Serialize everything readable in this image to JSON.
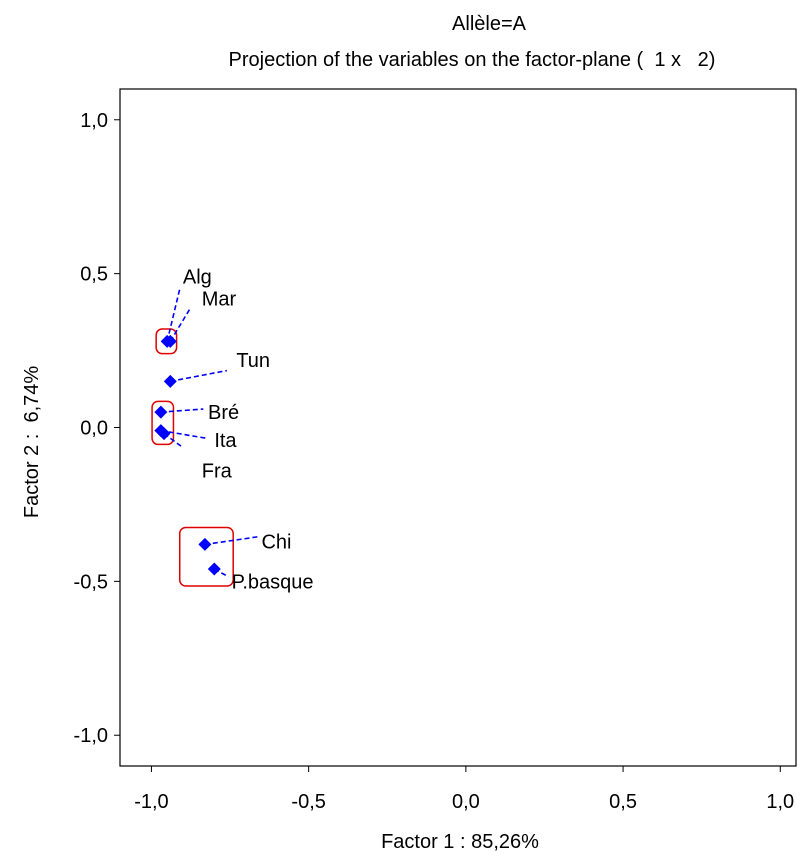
{
  "chart_data": {
    "type": "scatter",
    "title": "Allèle=A",
    "subtitle": "Projection of the variables on the factor-plane (  1 x   2)",
    "xlabel": "Factor 1 : 85,26%",
    "ylabel": "Factor 2 :  6,74%",
    "xlim": [
      -1.1,
      1.05
    ],
    "ylim": [
      -1.1,
      1.1
    ],
    "x_ticks": [
      {
        "value": -1.0,
        "label": "-1,0"
      },
      {
        "value": -0.5,
        "label": "-0,5"
      },
      {
        "value": 0.0,
        "label": "0,0"
      },
      {
        "value": 0.5,
        "label": "0,5"
      },
      {
        "value": 1.0,
        "label": "1,0"
      }
    ],
    "y_ticks": [
      {
        "value": 1.0,
        "label": "1,0"
      },
      {
        "value": 0.5,
        "label": "0,5"
      },
      {
        "value": 0.0,
        "label": "0,0"
      },
      {
        "value": -0.5,
        "label": "-0,5"
      },
      {
        "value": -1.0,
        "label": "-1,0"
      }
    ],
    "grid": false,
    "point_color": "#0000ff",
    "leader_color": "#0000ff",
    "group_box_color": "#e00000",
    "points": [
      {
        "label": "Alg",
        "x": -0.95,
        "y": 0.28,
        "label_x": -0.9,
        "label_y": 0.49,
        "anchor_x": -0.91,
        "anchor_y": 0.45
      },
      {
        "label": "Mar",
        "x": -0.94,
        "y": 0.28,
        "label_x": -0.84,
        "label_y": 0.42,
        "anchor_x": -0.875,
        "anchor_y": 0.39
      },
      {
        "label": "Tun",
        "x": -0.94,
        "y": 0.15,
        "label_x": -0.73,
        "label_y": 0.22,
        "anchor_x": -0.76,
        "anchor_y": 0.185
      },
      {
        "label": "Bré",
        "x": -0.97,
        "y": 0.05,
        "label_x": -0.82,
        "label_y": 0.05,
        "anchor_x": -0.835,
        "anchor_y": 0.06
      },
      {
        "label": "Ita",
        "x": -0.97,
        "y": -0.01,
        "label_x": -0.8,
        "label_y": -0.04,
        "anchor_x": -0.825,
        "anchor_y": -0.035
      },
      {
        "label": "Fra",
        "x": -0.96,
        "y": -0.02,
        "label_x": -0.84,
        "label_y": -0.14,
        "anchor_x": -0.9,
        "anchor_y": -0.065
      },
      {
        "label": "Chi",
        "x": -0.83,
        "y": -0.38,
        "label_x": -0.65,
        "label_y": -0.37,
        "anchor_x": -0.66,
        "anchor_y": -0.355
      },
      {
        "label": "P.basque",
        "x": -0.8,
        "y": -0.46,
        "label_x": -0.745,
        "label_y": -0.5,
        "anchor_x": -0.755,
        "anchor_y": -0.485
      }
    ],
    "groups": [
      {
        "x_min": -0.985,
        "x_max": -0.92,
        "y_min": 0.24,
        "y_max": 0.32
      },
      {
        "x_min": -0.998,
        "x_max": -0.93,
        "y_min": -0.055,
        "y_max": 0.085
      },
      {
        "x_min": -0.91,
        "x_max": -0.74,
        "y_min": -0.515,
        "y_max": -0.325
      }
    ]
  }
}
